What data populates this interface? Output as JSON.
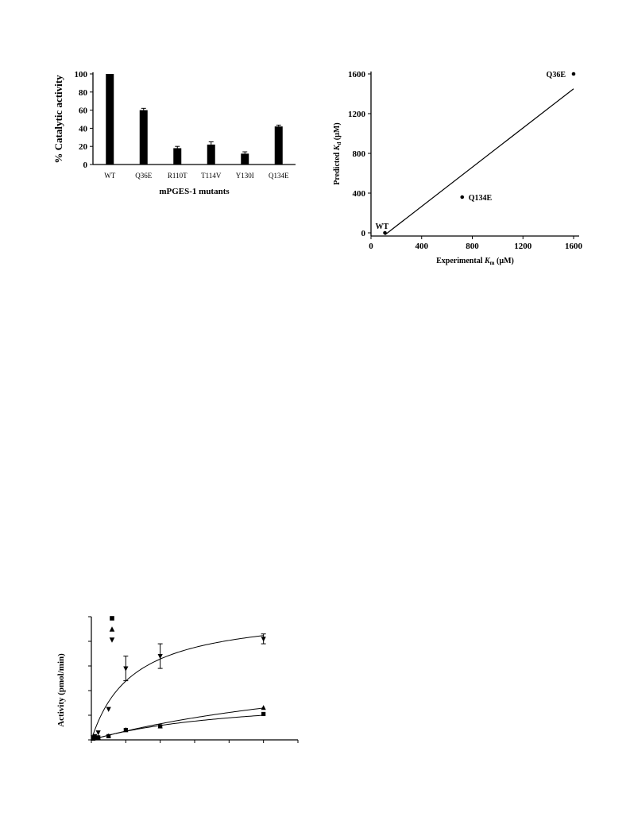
{
  "chart_data": [
    {
      "type": "bar",
      "title": "",
      "xlabel": "mPGES-1 mutants",
      "ylabel": "% Catalytic activity",
      "ylim": [
        0,
        100
      ],
      "yticks": [
        "0",
        "20",
        "40",
        "60",
        "80",
        "100"
      ],
      "categories": [
        "WT",
        "Q36E",
        "R110T",
        "T114V",
        "Y130I",
        "Q134E"
      ],
      "values": [
        100,
        60,
        18,
        22,
        12,
        42
      ],
      "errors": [
        0,
        2,
        2,
        3,
        2,
        1.5
      ]
    },
    {
      "type": "scatter",
      "title": "",
      "xlabel_main": "Experimental ",
      "xlabel_italic": "K",
      "xlabel_sub": "m",
      "xlabel_unit": " (µM)",
      "ylabel_main": "Predicted ",
      "ylabel_italic": "K",
      "ylabel_sub": "d",
      "ylabel_unit": " (µM)",
      "xlim": [
        0,
        1600
      ],
      "ylim": [
        0,
        1600
      ],
      "xticks": [
        "0",
        "400",
        "800",
        "1200",
        "1600"
      ],
      "yticks": [
        "0",
        "400",
        "800",
        "1200",
        "1600"
      ],
      "points": [
        {
          "label": "WT",
          "x": 110,
          "y": 0
        },
        {
          "label": "Q134E",
          "x": 720,
          "y": 360
        },
        {
          "label": "Q36E",
          "x": 1600,
          "y": 1600
        }
      ],
      "fit_line": {
        "x": [
          110,
          1600
        ],
        "y": [
          -20,
          1450
        ]
      }
    },
    {
      "type": "line",
      "title": "",
      "ylabel": "Activity (pmol/min)",
      "xlim": [
        0,
        60
      ],
      "ylim": [
        0,
        100
      ],
      "series": [
        {
          "marker": "square",
          "points": [
            [
              0.5,
              1
            ],
            [
              1,
              1.5
            ],
            [
              2,
              2
            ],
            [
              5,
              3
            ],
            [
              10,
              8
            ],
            [
              20,
              11
            ],
            [
              50,
              21
            ]
          ],
          "fit": {
            "vmax": 38,
            "km": 45
          }
        },
        {
          "marker": "triangle-up",
          "points": [
            [
              0.5,
              1
            ],
            [
              1,
              1.5
            ],
            [
              2,
              2
            ],
            [
              5,
              3
            ],
            [
              10,
              8
            ],
            [
              20,
              11
            ],
            [
              50,
              26
            ]
          ],
          "fit": {
            "vmax": 75,
            "km": 95
          }
        },
        {
          "marker": "triangle-down",
          "points": [
            [
              0.5,
              2
            ],
            [
              1,
              3
            ],
            [
              2,
              6
            ],
            [
              5,
              25
            ],
            [
              10,
              58
            ],
            [
              20,
              68
            ],
            [
              50,
              82
            ]
          ],
          "errors": [
            0,
            0,
            0,
            0,
            10,
            10,
            4
          ],
          "fit": {
            "vmax": 105,
            "km": 12
          }
        }
      ]
    }
  ]
}
